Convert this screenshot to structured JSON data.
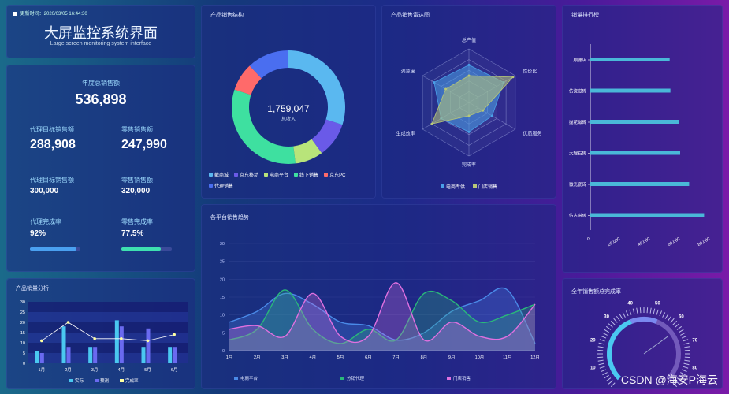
{
  "header": {
    "update_label": "更新时间：2020/03/05 16:44:30",
    "title": "大屏监控系统界面",
    "subtitle": "Large screen monitoring system interface"
  },
  "sales": {
    "annual_label": "年度总销售额",
    "annual_value": "536,898",
    "agent_target_label": "代理目标销售额",
    "agent_target_value": "288,908",
    "retail_label": "零售销售额",
    "retail_value": "247,990",
    "agent_target2_label": "代理目标销售额",
    "agent_target2_value": "300,000",
    "retail2_label": "零售销售额",
    "retail2_value": "320,000",
    "agent_rate_label": "代理完成率",
    "agent_rate_value": "92%",
    "agent_rate": 0.92,
    "retail_rate_label": "零售完成率",
    "retail_rate_value": "77.5%",
    "retail_rate": 0.775
  },
  "donut": {
    "title": "产品销售结构",
    "total": "1,759,047",
    "total_label": "总收入",
    "legend": [
      "截商城",
      "京东移动",
      "电商平台",
      "线下销售",
      "京东PC",
      "代理销售"
    ],
    "slices": [
      {
        "value": 30,
        "color": "#5ab8f0"
      },
      {
        "value": 10,
        "color": "#6a5ae8"
      },
      {
        "value": 8,
        "color": "#b8e47a"
      },
      {
        "value": 32,
        "color": "#3ee0a0"
      },
      {
        "value": 8,
        "color": "#ff6a6a"
      },
      {
        "value": 12,
        "color": "#4a6ef0"
      }
    ]
  },
  "radar": {
    "title": "产品销售雷达图",
    "axes": [
      "总产值",
      "性价比",
      "优质服务",
      "完成率",
      "生成效率",
      "满意度"
    ],
    "legend": [
      "电商专供",
      "门店销售"
    ],
    "series": [
      {
        "name": "电商专供",
        "values": [
          0.7,
          0.75,
          0.5,
          0.55,
          0.6,
          0.75
        ],
        "color": "#4aa0e8"
      },
      {
        "name": "门店销售",
        "values": [
          0.5,
          0.95,
          0.3,
          0.25,
          0.8,
          0.5
        ],
        "color": "#b8c878"
      }
    ]
  },
  "ranking": {
    "title": "销量排行榜",
    "names": [
      "顺德店",
      "仿瓷磁砖",
      "抛花磁砖",
      "大理石砖",
      "微光瓷砖",
      "仿古磁砖"
    ],
    "values": [
      53000,
      53500,
      59000,
      60000,
      66000,
      76000
    ],
    "ticks": [
      "0",
      "20,000",
      "40,000",
      "60,000",
      "80,000"
    ]
  },
  "bar_chart": {
    "title": "产品销量分析",
    "categories": [
      "1月",
      "2月",
      "3月",
      "4月",
      "5月",
      "6月"
    ],
    "y_ticks": [
      "30",
      "25",
      "20",
      "15",
      "10",
      "5",
      "0"
    ],
    "legend": [
      "实际",
      "预测",
      "完成率"
    ],
    "actual": [
      6,
      18,
      8,
      21,
      8,
      8
    ],
    "forecast": [
      5,
      8,
      8,
      18,
      17,
      8
    ],
    "rate": [
      11,
      20,
      12,
      12,
      11,
      14
    ]
  },
  "trend": {
    "title": "各平台销售趋势",
    "months": [
      "1月",
      "2月",
      "3月",
      "4月",
      "5月",
      "6月",
      "7月",
      "8月",
      "9月",
      "10月",
      "11月",
      "12月"
    ],
    "y_ticks": [
      "30",
      "25",
      "20",
      "15",
      "10",
      "5",
      "0"
    ],
    "legend": [
      "电商平台",
      "分销代理",
      "门店销售"
    ],
    "series": [
      {
        "name": "电商平台",
        "values": [
          8,
          11,
          16,
          13,
          8,
          7,
          3,
          5,
          11,
          14,
          17,
          2
        ],
        "color": "#4a8ae8"
      },
      {
        "name": "分销代理",
        "values": [
          3,
          6,
          17,
          6,
          2,
          6,
          3,
          16,
          14,
          8,
          10,
          13
        ],
        "color": "#2ab87a"
      },
      {
        "name": "门店销售",
        "values": [
          6,
          7,
          4,
          16,
          4,
          4,
          19,
          3,
          8,
          4,
          4,
          13
        ],
        "color": "#e070e0"
      }
    ]
  },
  "gauge": {
    "title": "全年销售额总完成率",
    "ticks": [
      "10",
      "20",
      "30",
      "40",
      "50",
      "60",
      "70",
      "80"
    ]
  },
  "watermark": "CSDN @海安P海云"
}
